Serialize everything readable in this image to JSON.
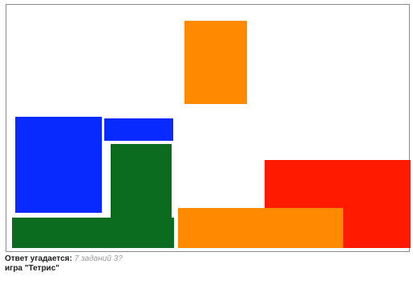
{
  "game": {
    "title": "Тетрис",
    "board": {
      "pieces": [
        {
          "id": "orange-top",
          "color": "#ff8a00"
        },
        {
          "id": "blue-large",
          "color": "#0a2bff"
        },
        {
          "id": "blue-small",
          "color": "#0a2bff"
        },
        {
          "id": "green-tall",
          "color": "#0b6b1f"
        },
        {
          "id": "green-bottom",
          "color": "#0b6b1f"
        },
        {
          "id": "red-right",
          "color": "#ff1a00"
        },
        {
          "id": "orange-bottom",
          "color": "#ff8a00"
        }
      ]
    }
  },
  "caption": {
    "answer_label": "Ответ угадается:",
    "answer_hint": "7 заданий 3?",
    "game_line": "игра \"Тетрис\""
  }
}
